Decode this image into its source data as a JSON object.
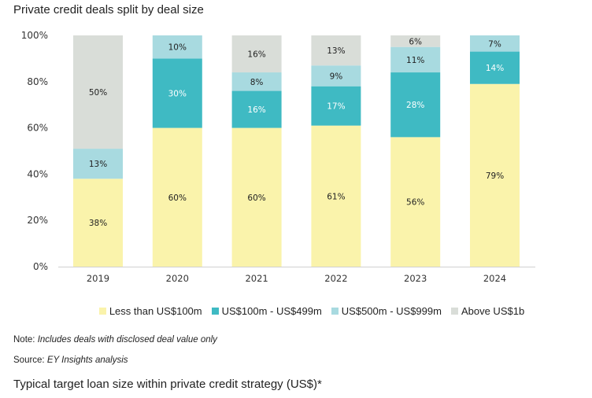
{
  "chart_data": {
    "type": "bar",
    "stacked": true,
    "title": "Private credit deals split by deal size",
    "categories": [
      "2019",
      "2020",
      "2021",
      "2022",
      "2023",
      "2024"
    ],
    "ylim": [
      0,
      100
    ],
    "yticks": [
      "0%",
      "20%",
      "40%",
      "60%",
      "80%",
      "100%"
    ],
    "grid": false,
    "legend_position": "bottom",
    "series": [
      {
        "name": "Less than US$100m",
        "color": "#FAF3AB",
        "label_color": "#222222",
        "values": [
          38,
          60,
          60,
          61,
          56,
          79
        ]
      },
      {
        "name": "US$100m - US$499m",
        "color": "#3FBAC3",
        "label_color": "#ffffff",
        "values": [
          0,
          30,
          16,
          17,
          28,
          14
        ]
      },
      {
        "name": "US$500m - US$999m",
        "color": "#A8DAE0",
        "label_color": "#222222",
        "values": [
          13,
          10,
          8,
          9,
          11,
          7
        ]
      },
      {
        "name": "Above US$1b",
        "color": "#D9DDD8",
        "label_color": "#222222",
        "values": [
          50,
          0,
          16,
          13,
          6,
          0
        ]
      }
    ]
  },
  "note": {
    "label": "Note:",
    "text": "Includes deals with disclosed deal value only"
  },
  "source": {
    "label": "Source:",
    "text": "EY Insights analysis"
  },
  "next_title": "Typical target loan size within private credit strategy (US$)*"
}
